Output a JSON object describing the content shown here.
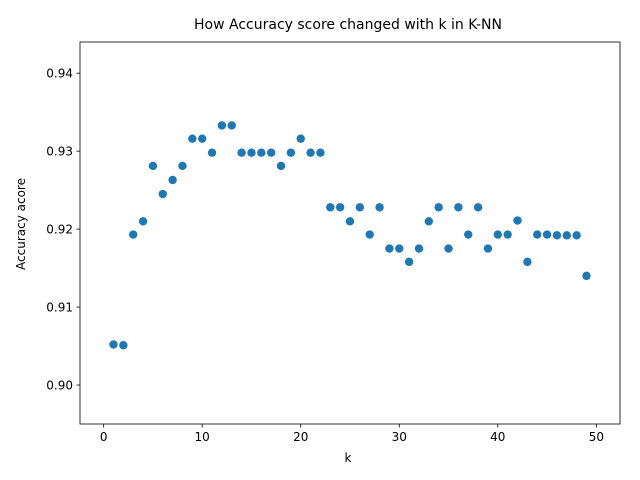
{
  "chart_data": {
    "type": "scatter",
    "title": "How Accuracy score changed with k in K-NN",
    "xlabel": "k",
    "ylabel": "Accuracy acore",
    "xlim": [
      -2.4,
      52.4
    ],
    "ylim": [
      0.895,
      0.944
    ],
    "xticks": [
      0,
      10,
      20,
      30,
      40,
      50
    ],
    "xtick_labels": [
      "0",
      "10",
      "20",
      "30",
      "40",
      "50"
    ],
    "yticks": [
      0.9,
      0.91,
      0.92,
      0.93,
      0.94
    ],
    "ytick_labels": [
      "0.90",
      "0.91",
      "0.92",
      "0.93",
      "0.94"
    ],
    "grid": false,
    "marker_color": "#1f77b4",
    "x": [
      1,
      2,
      3,
      4,
      5,
      6,
      7,
      8,
      9,
      10,
      11,
      12,
      13,
      14,
      15,
      16,
      17,
      18,
      19,
      20,
      21,
      22,
      23,
      24,
      25,
      26,
      27,
      28,
      29,
      30,
      31,
      32,
      33,
      34,
      35,
      36,
      37,
      38,
      39,
      40,
      41,
      42,
      43,
      44,
      45,
      46,
      47,
      48,
      49
    ],
    "y": [
      0.9052,
      0.9051,
      0.9193,
      0.921,
      0.9281,
      0.9245,
      0.9263,
      0.9281,
      0.9316,
      0.9316,
      0.9298,
      0.9333,
      0.9333,
      0.9298,
      0.9298,
      0.9298,
      0.9298,
      0.9281,
      0.9298,
      0.9316,
      0.9298,
      0.9298,
      0.9228,
      0.9228,
      0.921,
      0.9228,
      0.9193,
      0.9228,
      0.9175,
      0.9175,
      0.9158,
      0.9175,
      0.921,
      0.9228,
      0.9175,
      0.9228,
      0.9193,
      0.9228,
      0.9175,
      0.9193,
      0.9193,
      0.9211,
      0.9158,
      0.9193,
      0.9193,
      0.9192,
      0.9192,
      0.9192,
      0.914
    ]
  }
}
